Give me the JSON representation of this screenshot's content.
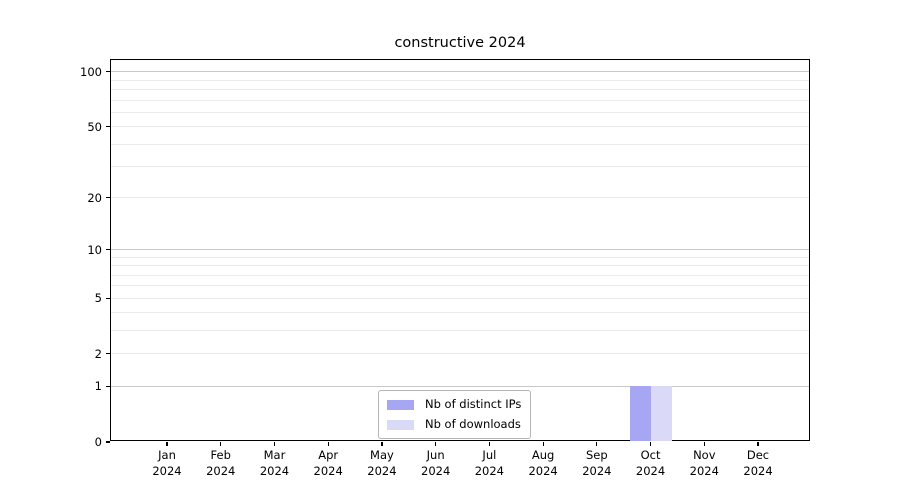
{
  "chart_data": {
    "type": "bar",
    "title": "constructive 2024",
    "categories": [
      "Jan 2024",
      "Feb 2024",
      "Mar 2024",
      "Apr 2024",
      "May 2024",
      "Jun 2024",
      "Jul 2024",
      "Aug 2024",
      "Sep 2024",
      "Oct 2024",
      "Nov 2024",
      "Dec 2024"
    ],
    "x_ticks": {
      "months": [
        "Jan",
        "Feb",
        "Mar",
        "Apr",
        "May",
        "Jun",
        "Jul",
        "Aug",
        "Sep",
        "Oct",
        "Nov",
        "Dec"
      ],
      "year": "2024"
    },
    "series": [
      {
        "name": "Nb of distinct IPs",
        "color": "#a6a6f2",
        "values": [
          0,
          0,
          0,
          0,
          0,
          0,
          0,
          0,
          0,
          1,
          0,
          0
        ]
      },
      {
        "name": "Nb of downloads",
        "color": "#dadaf8",
        "values": [
          0,
          0,
          0,
          0,
          0,
          0,
          0,
          0,
          0,
          1,
          0,
          0
        ]
      }
    ],
    "yscale": "log1p",
    "ylim": [
      0,
      115
    ],
    "y_labeled_ticks": [
      0,
      1,
      2,
      5,
      10,
      20,
      50,
      100
    ],
    "y_major_gridlines": [
      1,
      10,
      100
    ],
    "y_minor_gridlines": [
      2,
      3,
      4,
      5,
      6,
      7,
      8,
      9,
      20,
      30,
      40,
      50,
      60,
      70,
      80,
      90
    ],
    "legend_position": "lower center",
    "grid": "horizontal",
    "colors": {
      "grid_major": "#c8c8c8",
      "grid_minor": "#ececec",
      "spine": "#000000",
      "background": "#ffffff"
    }
  }
}
